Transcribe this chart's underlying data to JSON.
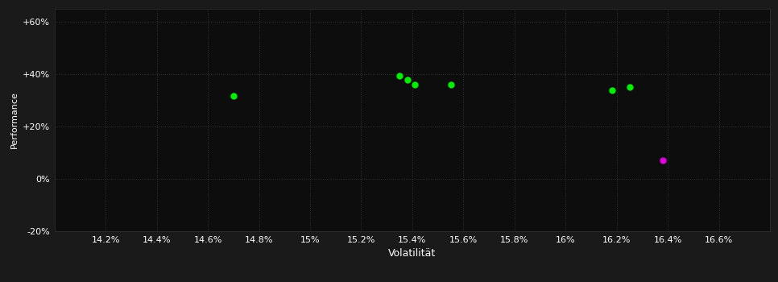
{
  "background_color": "#1a1a1a",
  "plot_bg_color": "#0d0d0d",
  "text_color": "#ffffff",
  "xlabel": "Volatilität",
  "ylabel": "Performance",
  "xlim": [
    0.14,
    0.168
  ],
  "ylim": [
    -0.2,
    0.65
  ],
  "yticks": [
    -0.2,
    0.0,
    0.2,
    0.4,
    0.6
  ],
  "ytick_labels": [
    "-20%",
    "0%",
    "+20%",
    "+40%",
    "+60%"
  ],
  "xticks": [
    0.142,
    0.144,
    0.146,
    0.148,
    0.15,
    0.152,
    0.154,
    0.156,
    0.158,
    0.16,
    0.162,
    0.164,
    0.166
  ],
  "xtick_labels": [
    "14.2%",
    "14.4%",
    "14.6%",
    "14.8%",
    "15%",
    "15.2%",
    "15.4%",
    "15.6%",
    "15.8%",
    "16%",
    "16.2%",
    "16.4%",
    "16.6%"
  ],
  "green_points": [
    [
      0.147,
      0.315
    ],
    [
      0.1535,
      0.393
    ],
    [
      0.1538,
      0.378
    ],
    [
      0.1541,
      0.36
    ],
    [
      0.1555,
      0.36
    ],
    [
      0.1618,
      0.337
    ],
    [
      0.1625,
      0.35
    ]
  ],
  "magenta_points": [
    [
      0.1638,
      0.072
    ]
  ],
  "green_color": "#00ee00",
  "magenta_color": "#dd00dd",
  "marker_size": 6,
  "figsize": [
    9.66,
    3.5
  ],
  "dpi": 100
}
